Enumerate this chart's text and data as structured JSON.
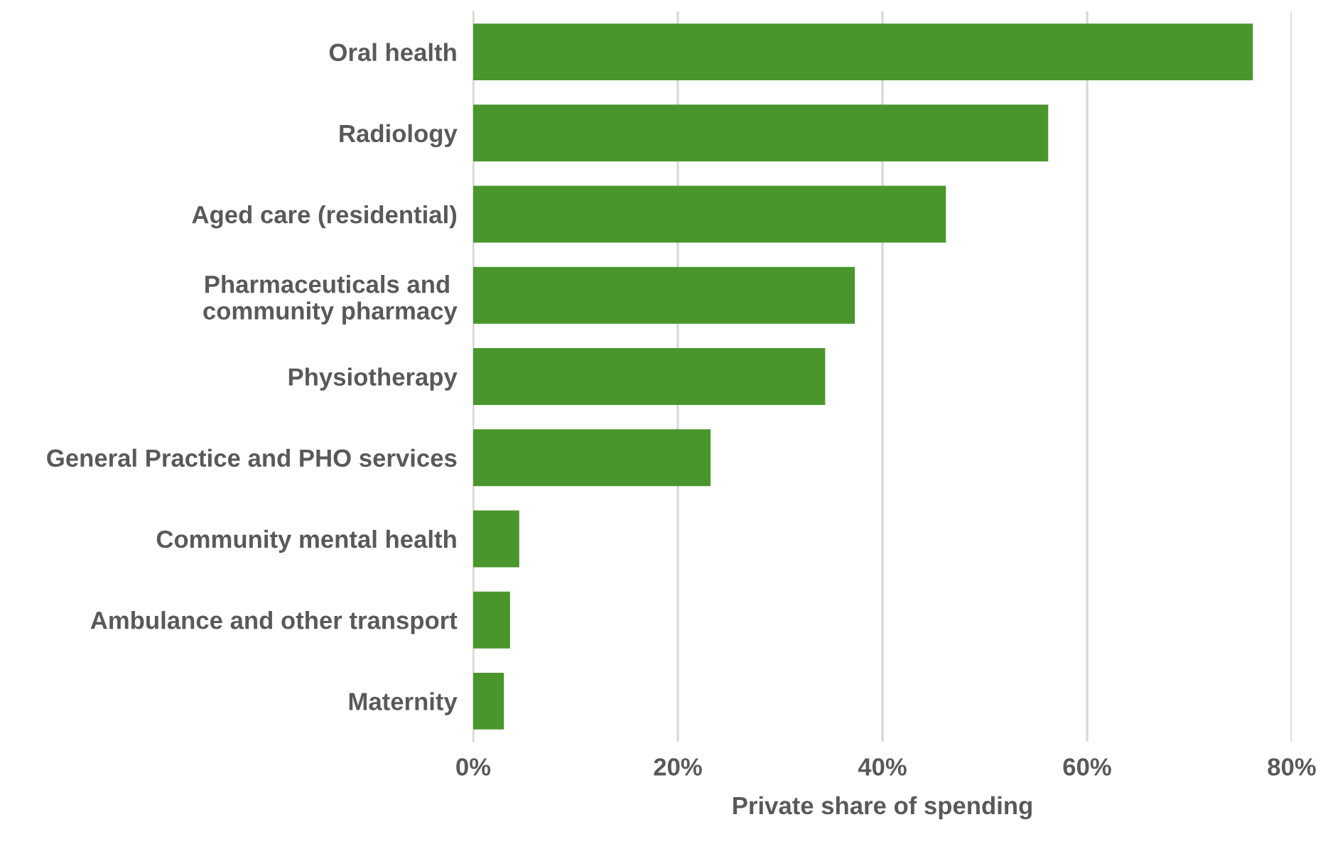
{
  "chart_data": {
    "type": "bar",
    "orientation": "horizontal",
    "xlabel": "Private share of spending",
    "categories": [
      "Oral health",
      "Radiology",
      "Aged care (residential)",
      "Pharmaceuticals and \ncommunity pharmacy",
      "Physiotherapy",
      "General Practice and PHO services",
      "Community mental health",
      "Ambulance and other transport",
      "Maternity"
    ],
    "values": [
      76.2,
      56.2,
      46.2,
      37.3,
      34.4,
      23.2,
      4.5,
      3.6,
      3.0
    ],
    "color": "#4a962c",
    "xlim": [
      0,
      80
    ],
    "xticks": [
      {
        "value": 0,
        "label": "0%"
      },
      {
        "value": 20,
        "label": "20%"
      },
      {
        "value": 40,
        "label": "40%"
      },
      {
        "value": 60,
        "label": "60%"
      },
      {
        "value": 80,
        "label": "80%"
      }
    ],
    "grid": "x"
  }
}
